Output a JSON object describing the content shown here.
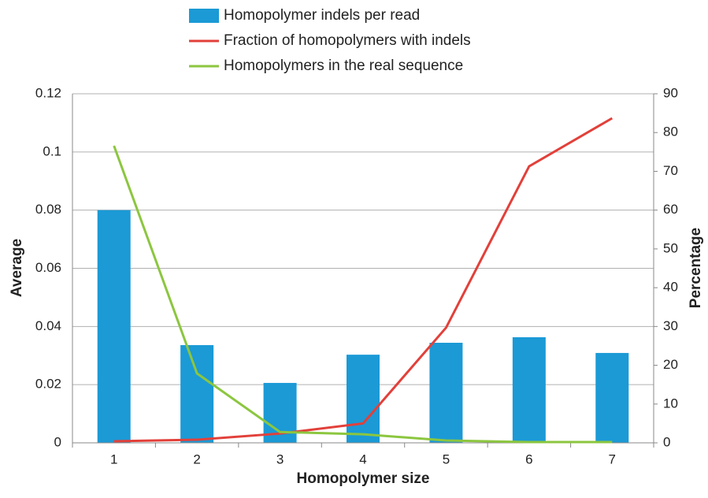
{
  "chart_data": {
    "type": "bar_line",
    "categories": [
      "1",
      "2",
      "3",
      "4",
      "5",
      "6",
      "7"
    ],
    "xlabel": "Homopolymer size",
    "ylabel": "Average",
    "y2label": "Percentage",
    "ylim": [
      0,
      0.12
    ],
    "yticks": [
      0,
      0.02,
      0.04,
      0.06,
      0.08,
      0.1,
      0.12
    ],
    "y2lim": [
      0,
      90
    ],
    "y2ticks": [
      0,
      10,
      20,
      30,
      40,
      50,
      60,
      70,
      80,
      90
    ],
    "grid": true,
    "legend": "top",
    "series": [
      {
        "name": "Homopolymer indels per read",
        "type": "bar",
        "color": "#1b9ad6",
        "values": [
          0.08,
          0.0336,
          0.0206,
          0.0303,
          0.0344,
          0.0363,
          0.0309
        ]
      },
      {
        "name": "Fraction of homopolymers with indels",
        "type": "line",
        "axis": "y2",
        "color": "#e2403a",
        "values": [
          0.4,
          0.8,
          2.4,
          5,
          29.7,
          71.3,
          83.7
        ]
      },
      {
        "name": "Homopolymers in the real sequence",
        "type": "line",
        "axis": "y2",
        "color": "#8cc63f",
        "values": [
          76.6,
          17.9,
          2.8,
          2.2,
          0.6,
          0.2,
          0.2
        ]
      }
    ]
  }
}
